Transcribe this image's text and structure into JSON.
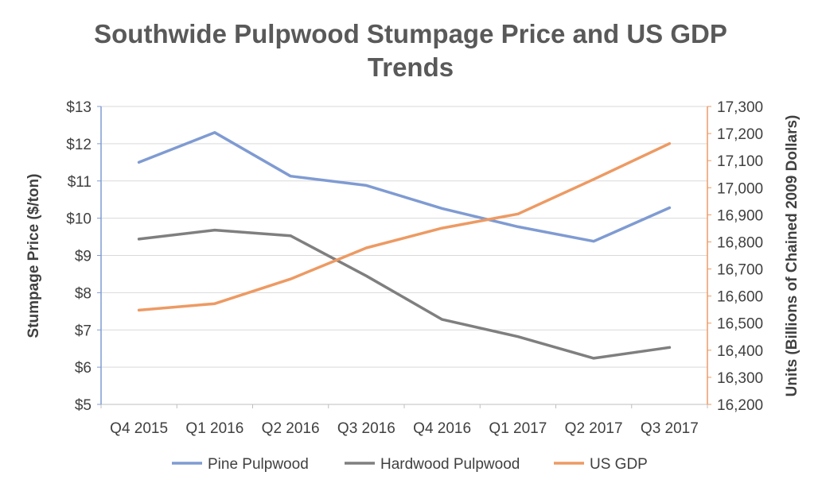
{
  "chart_data": {
    "type": "line",
    "title_lines": [
      "Southwide Pulpwood Stumpage Price and US GDP",
      "Trends"
    ],
    "categories": [
      "Q4 2015",
      "Q1 2016",
      "Q2 2016",
      "Q3 2016",
      "Q4 2016",
      "Q1 2017",
      "Q2 2017",
      "Q3 2017"
    ],
    "ylabel_left": "Stumpage Price ($/ton)",
    "ylabel_right": "Units (Billions of Chained 2009 Dollars)",
    "ylim_left": [
      5,
      13
    ],
    "ylim_right": [
      16200,
      17300
    ],
    "left_ticks": [
      "$5",
      "$6",
      "$7",
      "$8",
      "$9",
      "$10",
      "$11",
      "$12",
      "$13"
    ],
    "left_tick_values": [
      5,
      6,
      7,
      8,
      9,
      10,
      11,
      12,
      13
    ],
    "right_ticks": [
      "16,200",
      "16,300",
      "16,400",
      "16,500",
      "16,600",
      "16,700",
      "16,800",
      "16,900",
      "17,000",
      "17,100",
      "17,200",
      "17,300"
    ],
    "right_tick_values": [
      16200,
      16300,
      16400,
      16500,
      16600,
      16700,
      16800,
      16900,
      17000,
      17100,
      17200,
      17300
    ],
    "grid": true,
    "legend_position": "bottom",
    "series": [
      {
        "name": "Pine Pulpwood",
        "axis": "left",
        "color": "#7f9bd2",
        "values": [
          11.5,
          12.3,
          11.13,
          10.88,
          10.26,
          9.77,
          9.38,
          10.28
        ]
      },
      {
        "name": "Hardwood Pulpwood",
        "axis": "left",
        "color": "#7f7f7f",
        "values": [
          9.44,
          9.68,
          9.53,
          8.45,
          7.28,
          6.82,
          6.24,
          6.53
        ]
      },
      {
        "name": "US GDP",
        "axis": "right",
        "color": "#ed9a63",
        "values": [
          16548,
          16572,
          16663,
          16778,
          16851,
          16903,
          17031,
          17163
        ]
      }
    ]
  }
}
